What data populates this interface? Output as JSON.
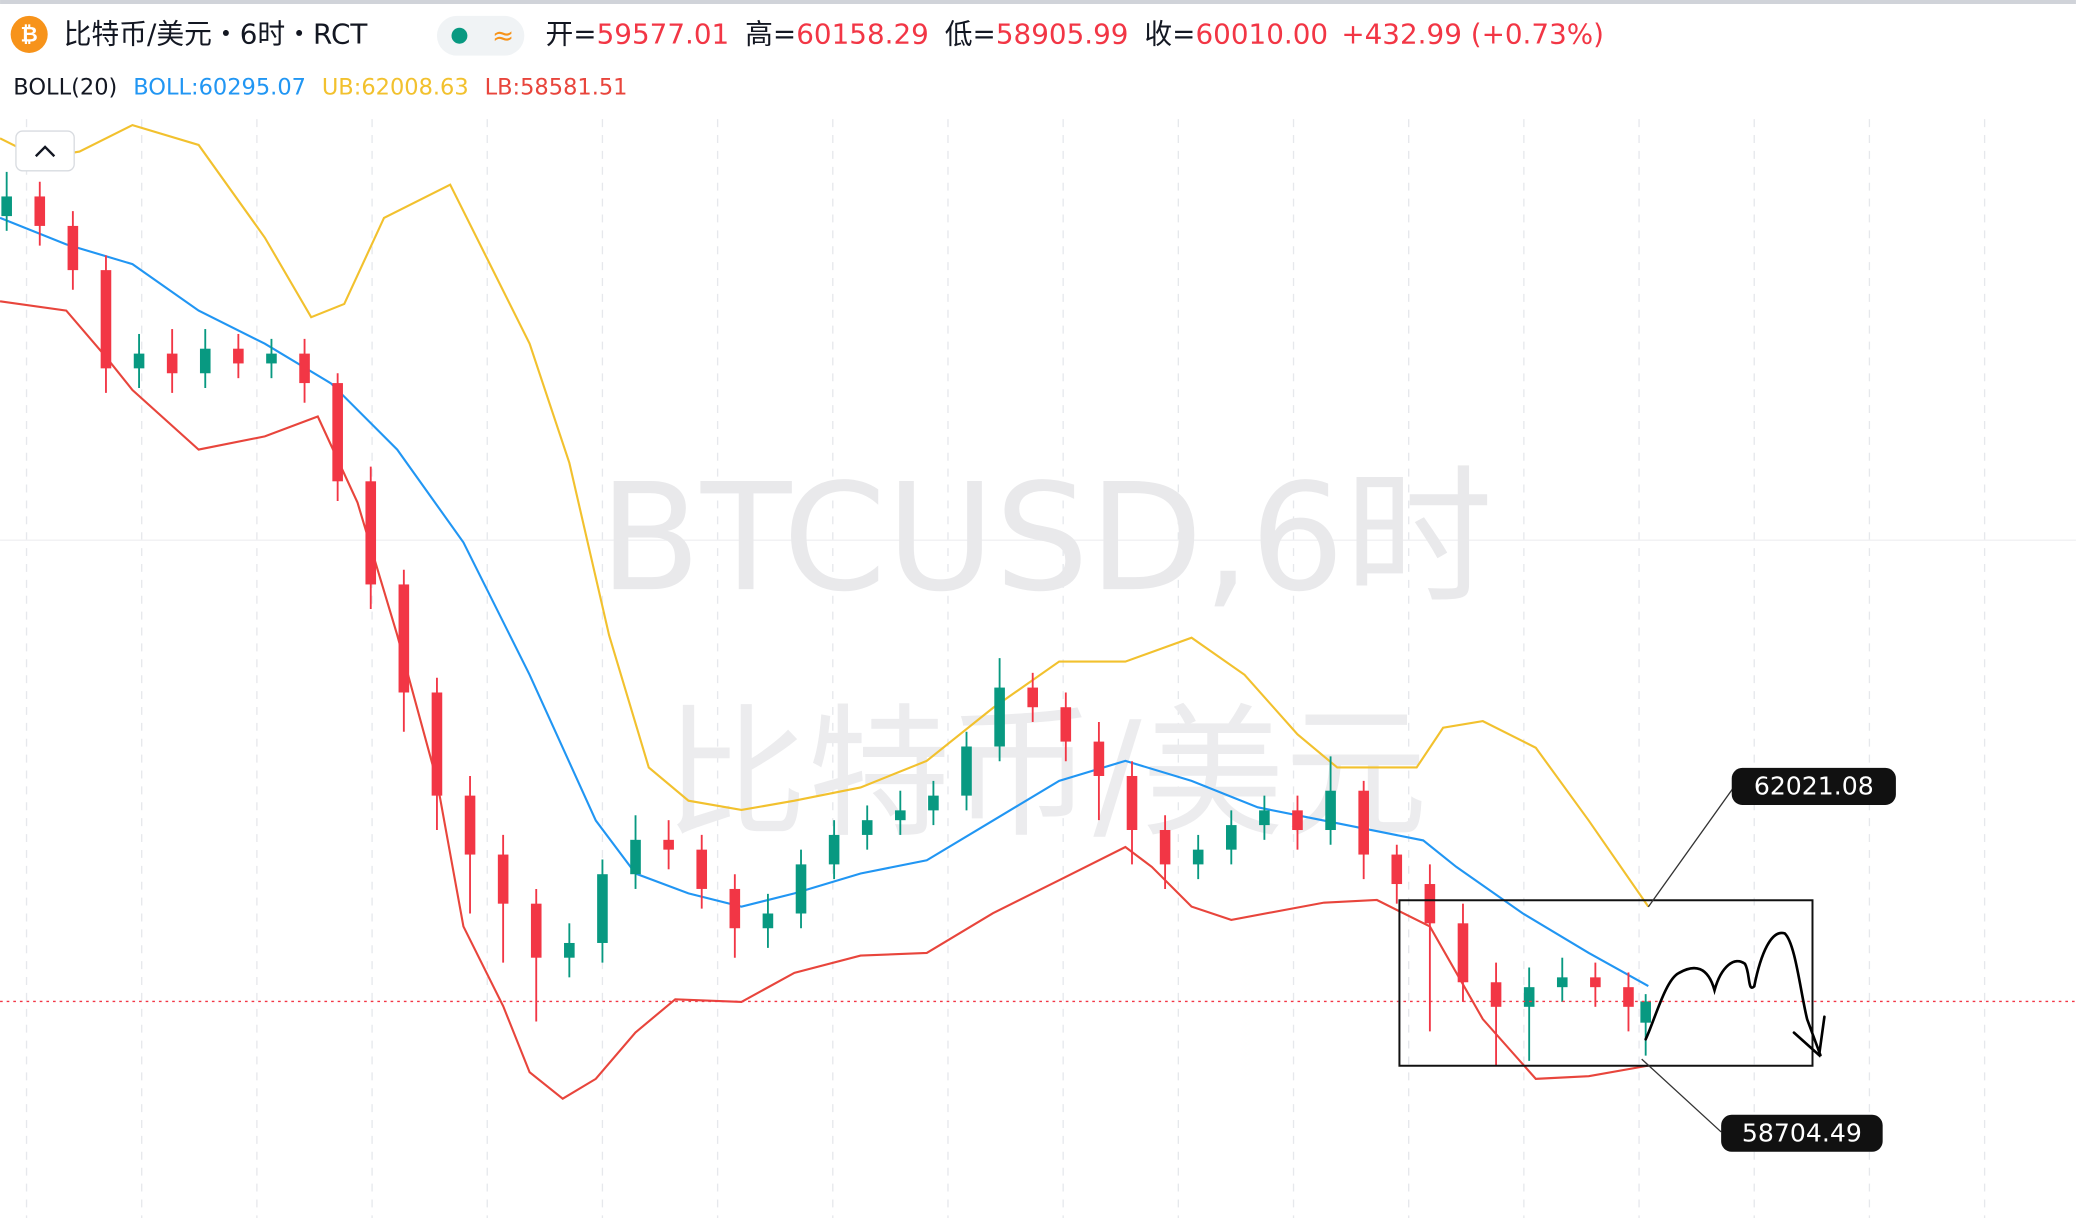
{
  "header": {
    "symbol": "比特币/美元・6时・RCT",
    "ohlc": [
      {
        "label": "开=",
        "value": "59577.01"
      },
      {
        "label": "高=",
        "value": "60158.29"
      },
      {
        "label": "低=",
        "value": "58905.99"
      },
      {
        "label": "收=",
        "value": "60010.00"
      }
    ],
    "change": "+432.99 (+0.73%)"
  },
  "watermark": [
    "BTCUSD,6时",
    "比特币/美元"
  ],
  "annotations": [
    "62021.08",
    "58704.49"
  ],
  "chart_data": {
    "type": "candlestick",
    "indicator": "BOLL(20)",
    "xlim": [
      0,
      1568
    ],
    "ylim": [
      55600,
      80400
    ],
    "up_color": "#089981",
    "down_color": "#f23645",
    "candles": {
      "x": [
        5,
        30,
        55,
        80,
        105,
        130,
        155,
        180,
        205,
        230,
        255,
        280,
        305,
        330,
        355,
        380,
        405,
        430,
        455,
        480,
        505,
        530,
        555,
        580,
        605,
        630,
        655,
        680,
        705,
        730,
        755,
        780,
        805,
        830,
        855,
        880,
        905,
        930,
        955,
        980,
        1005,
        1030,
        1055,
        1080,
        1105,
        1130,
        1155,
        1180,
        1205,
        1230,
        1243
      ],
      "open": [
        76000,
        76400,
        75800,
        74900,
        72900,
        73200,
        72800,
        73300,
        73000,
        73200,
        72600,
        70600,
        68500,
        66300,
        64200,
        63000,
        62000,
        60900,
        61200,
        62600,
        63300,
        63100,
        62300,
        61500,
        61800,
        62800,
        63400,
        63700,
        63900,
        64200,
        65200,
        66400,
        66000,
        65300,
        64600,
        63500,
        62800,
        63100,
        63600,
        63900,
        63500,
        64300,
        63000,
        62400,
        61600,
        60400,
        59900,
        60300,
        60500,
        60300,
        59577.01
      ],
      "high": [
        76900,
        76700,
        76100,
        75200,
        73600,
        73700,
        73700,
        73600,
        73500,
        73500,
        72800,
        70900,
        68800,
        66600,
        64600,
        63400,
        62300,
        61600,
        62900,
        63800,
        63700,
        63400,
        62600,
        62200,
        63100,
        63700,
        64000,
        64300,
        64500,
        65500,
        67000,
        66700,
        66300,
        65700,
        64900,
        63800,
        63400,
        63900,
        64200,
        64200,
        65000,
        64500,
        63200,
        62800,
        62000,
        60800,
        60700,
        60900,
        60800,
        60600,
        60158.29
      ],
      "low": [
        75700,
        75400,
        74500,
        72400,
        72500,
        72400,
        72500,
        72700,
        72700,
        72200,
        70200,
        68000,
        65500,
        63500,
        61800,
        60800,
        59600,
        60500,
        60800,
        62300,
        62700,
        61900,
        60900,
        61100,
        61500,
        62500,
        63100,
        63400,
        63600,
        63900,
        64900,
        65700,
        64900,
        63700,
        62800,
        62300,
        62500,
        62800,
        63300,
        63100,
        63200,
        62500,
        62000,
        59400,
        60000,
        58700,
        58800,
        60000,
        59900,
        59400,
        58905.99
      ],
      "close": [
        76400,
        75800,
        74900,
        72900,
        73200,
        72800,
        73300,
        73000,
        73200,
        72600,
        70600,
        68500,
        66300,
        64200,
        63000,
        62000,
        60900,
        61200,
        62600,
        63300,
        63100,
        62300,
        61500,
        61800,
        62800,
        63400,
        63700,
        63900,
        64200,
        65200,
        66400,
        66000,
        65300,
        64600,
        63500,
        62800,
        63100,
        63600,
        63900,
        63500,
        64300,
        63000,
        62400,
        61600,
        60400,
        59900,
        60300,
        60500,
        60300,
        59900,
        60010.0
      ]
    },
    "series": [
      {
        "name": "BOLL:60295.07",
        "color": "#2196f3",
        "x": [
          0,
          50,
          100,
          150,
          200,
          250,
          300,
          350,
          400,
          450,
          480,
          520,
          560,
          600,
          650,
          700,
          750,
          800,
          850,
          900,
          950,
          1000,
          1050,
          1075,
          1100,
          1150,
          1200,
          1245
        ],
        "values": [
          75964,
          75425,
          75021,
          74077,
          73402,
          72593,
          71245,
          69357,
          66660,
          63693,
          62614,
          62210,
          61940,
          62210,
          62614,
          62884,
          63693,
          64502,
          64907,
          64502,
          63963,
          63693,
          63423,
          63289,
          62749,
          61805,
          60996,
          60322
        ]
      },
      {
        "name": "UB:62008.63",
        "color": "#f2c12e",
        "x": [
          0,
          30,
          60,
          100,
          150,
          200,
          235,
          260,
          290,
          340,
          370,
          400,
          430,
          460,
          490,
          520,
          560,
          600,
          650,
          700,
          750,
          800,
          850,
          900,
          940,
          980,
          1010,
          1070,
          1090,
          1120,
          1160,
          1200,
          1245
        ],
        "values": [
          77583,
          77178,
          77313,
          77852,
          77448,
          75560,
          73942,
          74211,
          75964,
          76639,
          75021,
          73402,
          70975,
          67469,
          64772,
          64098,
          63909,
          64098,
          64367,
          64907,
          65986,
          66930,
          66930,
          67415,
          66660,
          65446,
          64772,
          64772,
          65581,
          65716,
          65176,
          63693,
          61940
        ]
      },
      {
        "name": "LB:58581.51",
        "color": "#e8453c",
        "x": [
          0,
          50,
          80,
          100,
          150,
          200,
          240,
          270,
          300,
          330,
          350,
          380,
          400,
          425,
          450,
          480,
          510,
          560,
          600,
          650,
          700,
          750,
          800,
          850,
          870,
          900,
          930,
          1000,
          1040,
          1080,
          1120,
          1160,
          1200,
          1245
        ],
        "values": [
          74265,
          74077,
          73133,
          72458,
          71245,
          71514,
          71919,
          70166,
          67469,
          64502,
          61536,
          59917,
          58569,
          58030,
          58434,
          59378,
          60052,
          59998,
          60592,
          60942,
          60996,
          61805,
          62479,
          63154,
          62749,
          61940,
          61670,
          62021,
          62075,
          61536,
          59648,
          58434,
          58488,
          58704
        ]
      }
    ]
  }
}
